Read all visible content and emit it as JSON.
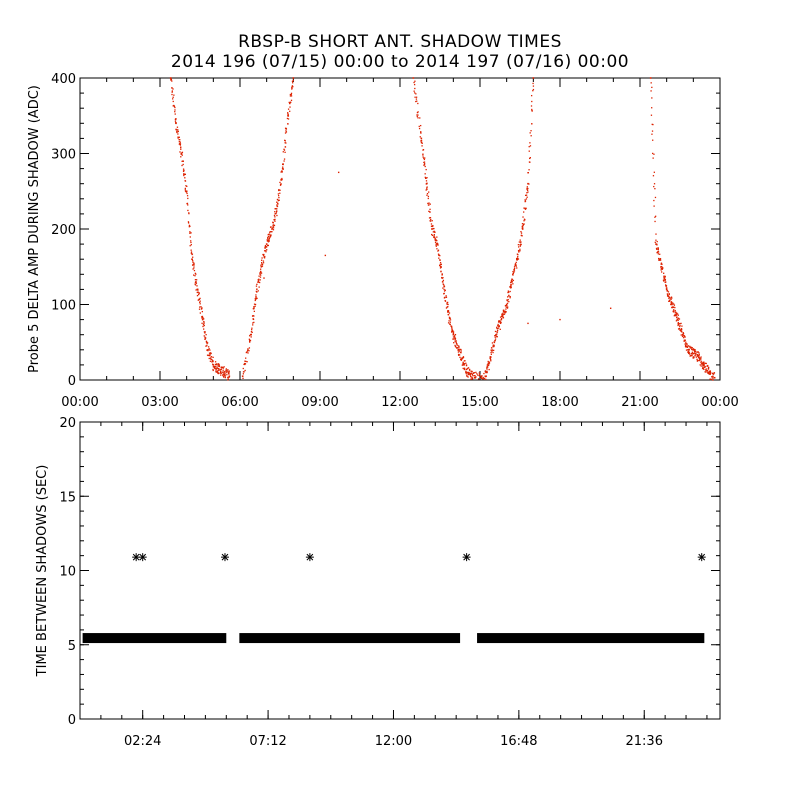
{
  "title": {
    "line1": "RBSP-B SHORT ANT. SHADOW TIMES",
    "line2": "2014 196 (07/15) 00:00 to 2014 197 (07/16) 00:00"
  },
  "colors": {
    "red_points": "#dd2200",
    "black": "#000000"
  },
  "chart_data": [
    {
      "type": "scatter",
      "ylabel": "Probe 5 DELTA AMP DURING SHADOW (ADC)",
      "xlabel": "",
      "xlim": [
        0,
        24
      ],
      "ylim": [
        0,
        400
      ],
      "xticks": [
        0,
        3,
        6,
        9,
        12,
        15,
        18,
        21,
        24
      ],
      "xtick_labels": [
        "00:00",
        "03:00",
        "06:00",
        "09:00",
        "12:00",
        "15:00",
        "18:00",
        "21:00",
        "00:00"
      ],
      "yticks": [
        0,
        100,
        200,
        300,
        400
      ],
      "ytick_labels": [
        "0",
        "100",
        "200",
        "300",
        "400"
      ],
      "series": [
        {
          "name": "delta_amp",
          "color": "#dd2200",
          "x": [
            3.4,
            3.6,
            3.8,
            4.0,
            4.2,
            4.4,
            4.6,
            4.8,
            5.0,
            5.2,
            5.4,
            5.6,
            6.1,
            6.4,
            6.6,
            6.8,
            7.0,
            7.2,
            7.4,
            7.6,
            7.8,
            8.0,
            12.5,
            12.8,
            13.0,
            13.2,
            13.4,
            13.6,
            13.8,
            14.0,
            14.2,
            14.4,
            14.6,
            14.8,
            15.2,
            15.4,
            15.6,
            15.8,
            16.0,
            16.2,
            16.4,
            16.6,
            16.8,
            17.0,
            21.4,
            21.6,
            21.8,
            22.0,
            22.2,
            22.4,
            22.6,
            22.8,
            23.0,
            23.2,
            23.4,
            23.6,
            23.8
          ],
          "y": [
            400,
            340,
            300,
            250,
            160,
            120,
            80,
            40,
            20,
            15,
            10,
            5,
            5,
            60,
            110,
            150,
            180,
            200,
            230,
            280,
            350,
            400,
            400,
            320,
            260,
            200,
            180,
            130,
            90,
            60,
            40,
            20,
            8,
            3,
            5,
            30,
            60,
            80,
            100,
            130,
            160,
            200,
            260,
            400,
            400,
            180,
            150,
            120,
            100,
            80,
            60,
            40,
            35,
            30,
            20,
            8,
            3
          ]
        },
        {
          "name": "stray",
          "color": "#dd2200",
          "x": [
            6.9,
            9.2,
            9.7,
            16.8,
            18.0,
            19.9
          ],
          "y": [
            135,
            165,
            275,
            75,
            80,
            95
          ]
        }
      ]
    },
    {
      "type": "scatter",
      "ylabel": "TIME BETWEEN SHADOWS (SEC)",
      "xlabel": "",
      "xlim": [
        0,
        24.5
      ],
      "ylim": [
        0,
        20
      ],
      "xticks": [
        2.4,
        7.2,
        12.0,
        16.8,
        21.6
      ],
      "xtick_labels": [
        "02:24",
        "07:12",
        "12:00",
        "16:48",
        "21:36"
      ],
      "yticks": [
        0,
        5,
        10,
        15,
        20
      ],
      "ytick_labels": [
        "0",
        "5",
        "10",
        "15",
        "20"
      ],
      "series": [
        {
          "name": "shadow_interval",
          "color": "#000000",
          "segments": [
            [
              0.1,
              5.6
            ],
            [
              6.1,
              14.55
            ],
            [
              15.2,
              23.9
            ]
          ],
          "y": 5.45
        },
        {
          "name": "double_interval",
          "color": "#000000",
          "x": [
            2.15,
            2.4,
            5.55,
            8.8,
            14.8,
            23.8
          ],
          "y": [
            10.9,
            10.9,
            10.9,
            10.9,
            10.9,
            10.9
          ]
        }
      ]
    }
  ]
}
